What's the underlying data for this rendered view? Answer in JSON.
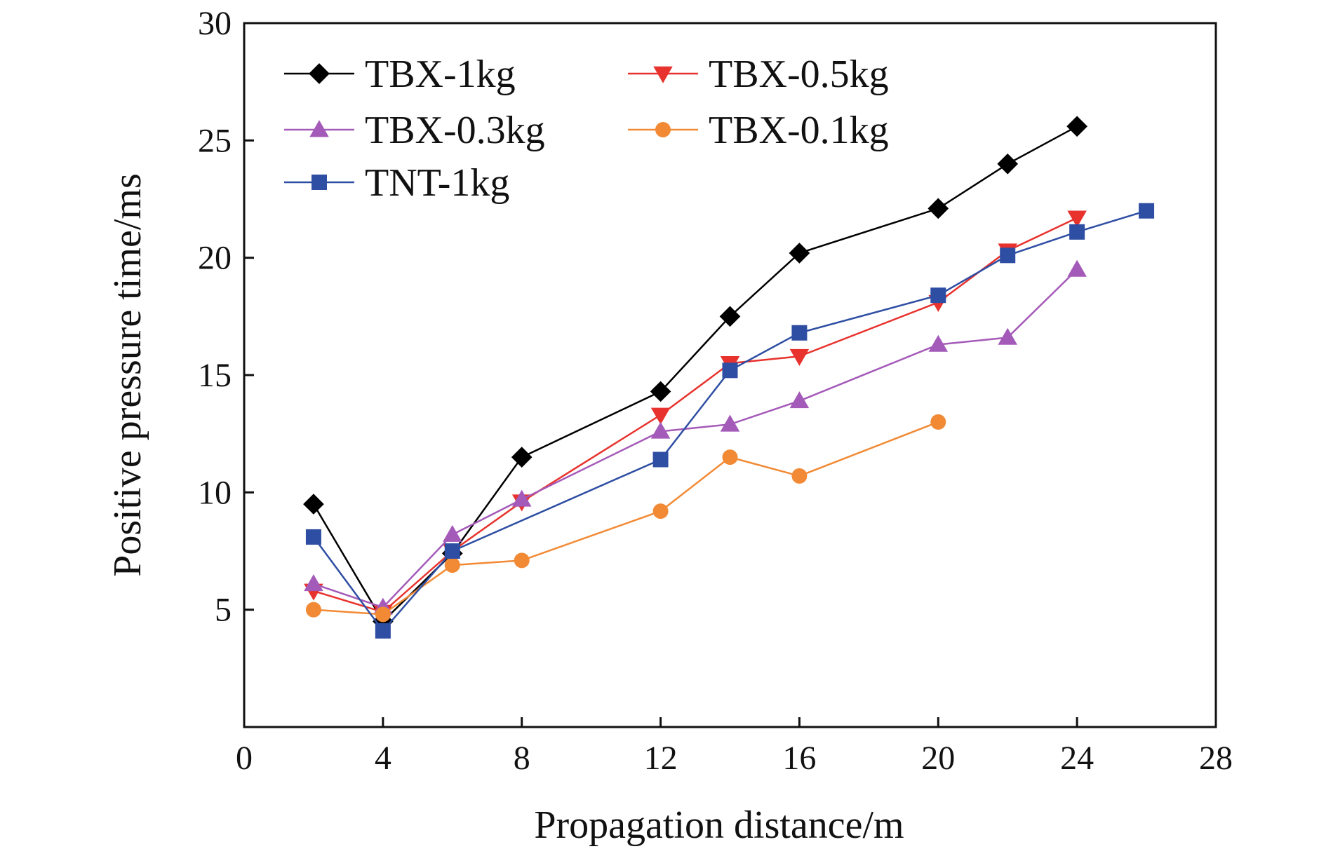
{
  "chart_data": {
    "type": "line",
    "title": "",
    "xlabel": "Propagation distance/m",
    "ylabel": "Positive pressure time/ms",
    "xlim": [
      0,
      28
    ],
    "ylim": [
      0,
      30
    ],
    "xticks": [
      0,
      4,
      8,
      12,
      16,
      20,
      24,
      28
    ],
    "yticks": [
      5,
      10,
      15,
      20,
      25,
      30
    ],
    "grid": false,
    "legend_position": "top-left",
    "series": [
      {
        "name": "TBX-1kg",
        "color": "#000000",
        "marker": "diamond",
        "x": [
          2,
          4,
          6,
          8,
          12,
          14,
          16,
          20,
          22,
          24
        ],
        "y": [
          9.5,
          4.5,
          7.4,
          11.5,
          14.3,
          17.5,
          20.2,
          22.1,
          24.0,
          25.6
        ]
      },
      {
        "name": "TBX-0.5kg",
        "color": "#e8322d",
        "marker": "triangle-down",
        "x": [
          2,
          4,
          6,
          8,
          12,
          14,
          16,
          20,
          22,
          24
        ],
        "y": [
          5.8,
          4.9,
          7.5,
          9.6,
          13.3,
          15.5,
          15.8,
          18.1,
          20.3,
          21.7
        ]
      },
      {
        "name": "TBX-0.3kg",
        "color": "#a45ab8",
        "marker": "triangle-up",
        "x": [
          2,
          4,
          6,
          8,
          12,
          14,
          16,
          20,
          22,
          24
        ],
        "y": [
          6.1,
          5.1,
          8.2,
          9.7,
          12.6,
          12.9,
          13.9,
          16.3,
          16.6,
          19.5
        ]
      },
      {
        "name": "TBX-0.1kg",
        "color": "#f28a35",
        "marker": "circle",
        "x": [
          2,
          4,
          6,
          8,
          12,
          14,
          16,
          20
        ],
        "y": [
          5.0,
          4.8,
          6.9,
          7.1,
          9.2,
          11.5,
          10.7,
          13.0
        ]
      },
      {
        "name": "TNT-1kg",
        "color": "#2e4ea3",
        "marker": "square",
        "x": [
          2,
          4,
          6,
          12,
          14,
          16,
          20,
          22,
          24,
          26
        ],
        "y": [
          8.1,
          4.1,
          7.5,
          11.4,
          15.2,
          16.8,
          18.4,
          20.1,
          21.1,
          22.0
        ]
      }
    ]
  }
}
